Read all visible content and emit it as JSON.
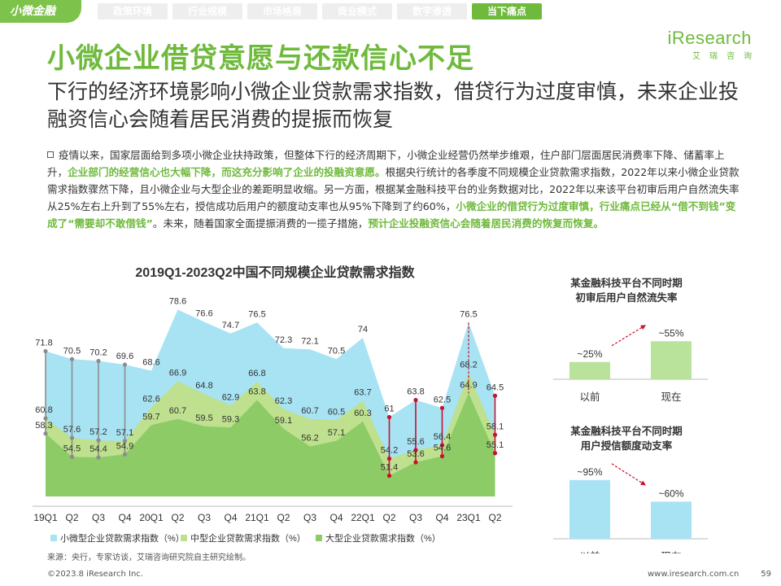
{
  "header": {
    "badge": "小微金融",
    "tabs": [
      "政策环境",
      "行业规模",
      "市场格局",
      "商业模式",
      "数字渗透",
      "当下痛点"
    ],
    "active_tab": 5
  },
  "logo": {
    "main": "iResearch",
    "sub": "艾瑞咨询"
  },
  "page": {
    "title": "小微企业借贷意愿与还款信心不足",
    "subtitle": "下行的经济环境影响小微企业贷款需求指数，借贷行为过度审慎，未来企业投融资信心会随着居民消费的提振而恢复"
  },
  "body": {
    "segments": [
      {
        "text": "疫情以来，国家层面给到多项小微企业扶持政策，但整体下行的经济周期下，小微企业经营仍然举步维艰，住户部门层面居民消费率下降、储蓄率上升，",
        "hl": false
      },
      {
        "text": "企业部门的经营信心也大幅下降，而这充分影响了企业的投融资意愿。",
        "hl": true
      },
      {
        "text": "根据央行统计的各季度不同规模企业贷款需求指数，2022年以来小微企业贷款需求指数骤然下降，且小微企业与大型企业的差距明显收缩。另一方面，根据某金融科技平台的业务数据对比，2022年以来该平台初审后用户自然流失率从25%左右上升到了55%左右，授信成功后用户的额度动支率也从95%下降到了约60%，",
        "hl": false
      },
      {
        "text": "小微企业的借贷行为过度审慎，行业痛点已经从“借不到钱”变成了“需要却不敢借钱”",
        "hl": true
      },
      {
        "text": "。未来，随着国家全面提振消费的一揽子措施，",
        "hl": false
      },
      {
        "text": "预计企业投融资信心会随着居民消费的恢复而恢复。",
        "hl": true
      }
    ]
  },
  "chart_data": [
    {
      "type": "area",
      "title": "2019Q1-2023Q2中国不同规模企业贷款需求指数",
      "categories": [
        "19Q1",
        "Q2",
        "Q3",
        "Q4",
        "20Q1",
        "Q2",
        "Q3",
        "Q4",
        "21Q1",
        "Q2",
        "Q3",
        "Q4",
        "22Q1",
        "Q2",
        "Q3",
        "Q4",
        "23Q1",
        "Q2"
      ],
      "series": [
        {
          "name": "小微型企业贷款需求指数（%）",
          "color": "#a7e3f3",
          "values": [
            71.8,
            70.5,
            70.2,
            69.6,
            68.6,
            78.6,
            76.6,
            74.7,
            76.5,
            72.3,
            72.1,
            70.5,
            74,
            61,
            63.8,
            62.5,
            76.5,
            64.5
          ]
        },
        {
          "name": "中型企业贷款需求指数（%）",
          "color": "#bfe08e",
          "values": [
            60.8,
            57.6,
            57.2,
            57.1,
            62.6,
            66.9,
            64.8,
            62.9,
            66.8,
            62.3,
            60.7,
            60.5,
            63.7,
            54.2,
            55.6,
            56.4,
            68.2,
            58.1
          ]
        },
        {
          "name": "大型企业贷款需求指数（%）",
          "color": "#8ccb65",
          "values": [
            58.3,
            54.5,
            54.4,
            54.9,
            59.7,
            60.7,
            59.5,
            59.3,
            63.8,
            59.1,
            56.2,
            57.1,
            60.3,
            51.4,
            53.6,
            54.6,
            64.9,
            55.1
          ]
        }
      ],
      "gray_connectors": [
        0,
        1,
        2,
        3
      ],
      "red_connectors": [
        13,
        14,
        15,
        17
      ],
      "ylim": [
        48,
        80
      ],
      "legend": "bottom"
    },
    {
      "type": "bar",
      "title": "某金融科技平台不同时期初审后用户自然流失率",
      "categories": [
        "以前",
        "现在"
      ],
      "values": [
        25,
        55
      ],
      "labels": [
        "~25%",
        "~55%"
      ],
      "colors": [
        "#b9e39a",
        "#b9e39a"
      ],
      "ylim": [
        0,
        100
      ]
    },
    {
      "type": "bar",
      "title": "某金融科技平台不同时期用户授信额度动支率",
      "categories": [
        "以前",
        "现在"
      ],
      "values": [
        95,
        60
      ],
      "labels": [
        "~95%",
        "~60%"
      ],
      "colors": [
        "#a7e3f3",
        "#a7e3f3"
      ],
      "ylim": [
        0,
        100
      ]
    }
  ],
  "footer": {
    "source": "来源：央行，专家访谈，艾瑞咨询研究院自主研究绘制。",
    "copyright": "©2023.8 iResearch Inc.",
    "url": "www.iresearch.com.cn",
    "page_number": "59"
  }
}
